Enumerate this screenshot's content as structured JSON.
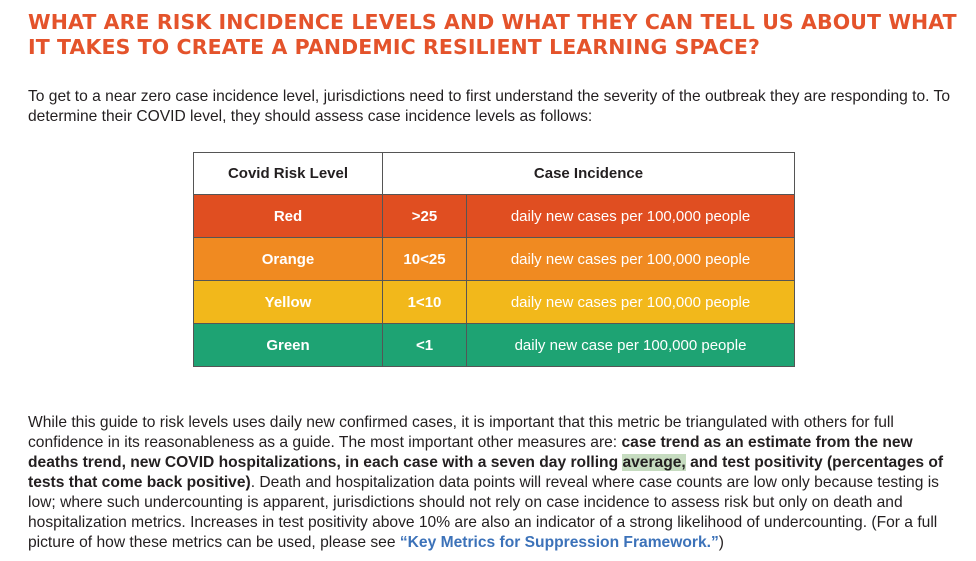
{
  "title": "WHAT ARE RISK INCIDENCE LEVELS AND WHAT THEY CAN TELL US ABOUT WHAT IT TAKES TO CREATE A PANDEMIC RESILIENT LEARNING SPACE?",
  "intro": "To get to a near zero case incidence level, jurisdictions need to first understand the severity of the outbreak they are responding to. To determine their COVID level, they should assess case incidence levels as follows:",
  "table": {
    "headers": {
      "level": "Covid Risk Level",
      "incidence": "Case Incidence"
    },
    "rows": [
      {
        "level": "Red",
        "range": ">25",
        "desc": "daily new cases per 100,000 people",
        "color": "#e04e21"
      },
      {
        "level": "Orange",
        "range": "10<25",
        "desc": "daily new cases per 100,000 people",
        "color": "#f08a21"
      },
      {
        "level": "Yellow",
        "range": "1<10",
        "desc": "daily new cases per 100,000 people",
        "color": "#f2b81b"
      },
      {
        "level": "Green",
        "range": "<1",
        "desc": "daily new case per 100,000 people",
        "color": "#1ea373"
      }
    ]
  },
  "body": {
    "part1": "While this guide to risk levels uses daily new confirmed cases, it is important that this metric be triangulated with others for full confidence in its reasonableness as a guide. The most important other measures are: ",
    "bold1": "case trend as an estimate from the new deaths trend, new COVID hospitalizations, in each case with a seven day rolling ",
    "bold_highlight": "average,",
    "bold2": " and test positivity (percentages of tests that come back positive)",
    "part2": ". Death and hospitalization data points will reveal where case counts are low only because testing is low; where such undercounting is apparent, jurisdictions should not rely on case incidence to assess risk but only on death and hospitalization metrics. Increases in test positivity above 10% are also an indicator of a strong likelihood of undercounting. (For a full picture of how these metrics can be used, please see ",
    "link": "“Key Metrics for Suppression Framework.”",
    "part3": ")"
  }
}
